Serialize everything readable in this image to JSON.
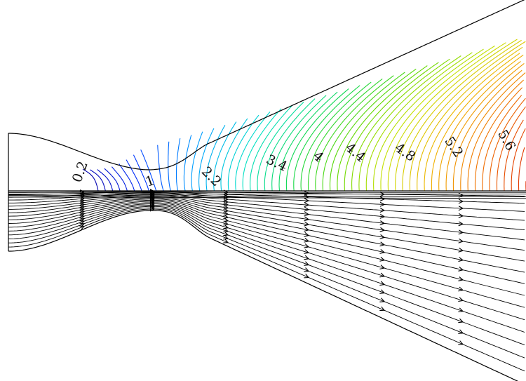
{
  "contour_labels": [
    {
      "text": "0.2"
    },
    {
      "text": "1"
    },
    {
      "text": "2.2"
    },
    {
      "text": "3.4"
    },
    {
      "text": "4"
    },
    {
      "text": "4.4"
    },
    {
      "text": "4.8"
    },
    {
      "text": "5.2"
    },
    {
      "text": "5.6"
    }
  ],
  "colormap": [
    "#0000b0",
    "#0030ff",
    "#00a0ff",
    "#00e0c8",
    "#10d850",
    "#60d800",
    "#c8e000",
    "#f0b000",
    "#f07000",
    "#e03000"
  ],
  "outline_color": "#000000",
  "streamline_color": "#000000"
}
